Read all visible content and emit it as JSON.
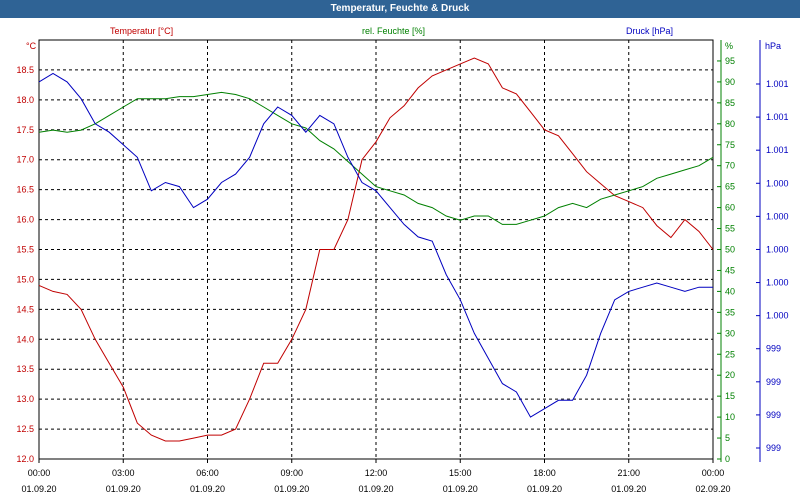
{
  "window": {
    "title": "Temperatur, Feuchte & Druck"
  },
  "chart_data": {
    "type": "line",
    "title": "Temperatur, Feuchte & Druck",
    "colors": {
      "temperature": "#c00000",
      "humidity": "#008000",
      "pressure": "#0000c0",
      "axis_left": "#c00000",
      "axis_mid": "#008000",
      "axis_right": "#0000c0"
    },
    "grid": true,
    "x_ticks": [
      {
        "time": "00:00",
        "date": "01.09.20"
      },
      {
        "time": "03:00",
        "date": "01.09.20"
      },
      {
        "time": "06:00",
        "date": "01.09.20"
      },
      {
        "time": "09:00",
        "date": "01.09.20"
      },
      {
        "time": "12:00",
        "date": "01.09.20"
      },
      {
        "time": "15:00",
        "date": "01.09.20"
      },
      {
        "time": "18:00",
        "date": "01.09.20"
      },
      {
        "time": "21:00",
        "date": "01.09.20"
      },
      {
        "time": "00:00",
        "date": "02.09.20"
      }
    ],
    "x_hours": [
      0,
      24
    ],
    "axes": {
      "temperature": {
        "label": "Temperatur [°C]",
        "unit": "°C",
        "ylim": [
          12.0,
          19.0
        ],
        "ticks": [
          "12.0",
          "12.5",
          "13.0",
          "13.5",
          "14.0",
          "14.5",
          "15.0",
          "15.5",
          "16.0",
          "16.5",
          "17.0",
          "17.5",
          "18.0",
          "18.5"
        ]
      },
      "humidity": {
        "label": "rel. Feuchte [%]",
        "unit": "%",
        "ylim": [
          0,
          100
        ],
        "ticks": [
          "0",
          "5",
          "10",
          "15",
          "20",
          "25",
          "30",
          "35",
          "40",
          "45",
          "50",
          "55",
          "60",
          "65",
          "70",
          "75",
          "80",
          "85",
          "90",
          "95"
        ]
      },
      "pressure": {
        "label": "Druck [hPa]",
        "unit": "hPa",
        "ticks": [
          "999",
          "999",
          "999",
          "999",
          "1.000",
          "1.000",
          "1.000",
          "1.000",
          "1.000",
          "1.001",
          "1.001",
          "1.001"
        ]
      }
    },
    "series": [
      {
        "name": "Temperatur [°C]",
        "axis": "temperature",
        "x": [
          0,
          0.5,
          1,
          1.5,
          2,
          2.5,
          3,
          3.5,
          4,
          4.5,
          5,
          5.5,
          6,
          6.5,
          7,
          7.5,
          8,
          8.5,
          9,
          9.5,
          10,
          10.5,
          11,
          11.5,
          12,
          12.5,
          13,
          13.5,
          14,
          14.5,
          15,
          15.5,
          16,
          16.5,
          17,
          17.5,
          18,
          18.5,
          19,
          19.5,
          20,
          20.5,
          21,
          21.5,
          22,
          22.5,
          23,
          23.5,
          24
        ],
        "values": [
          14.9,
          14.8,
          14.75,
          14.5,
          14.0,
          13.6,
          13.2,
          12.6,
          12.4,
          12.3,
          12.3,
          12.35,
          12.4,
          12.4,
          12.5,
          13.0,
          13.6,
          13.6,
          14.0,
          14.5,
          15.5,
          15.5,
          16.0,
          17.0,
          17.3,
          17.7,
          17.9,
          18.2,
          18.4,
          18.5,
          18.6,
          18.7,
          18.6,
          18.2,
          18.1,
          17.8,
          17.5,
          17.4,
          17.1,
          16.8,
          16.6,
          16.4,
          16.3,
          16.2,
          15.9,
          15.7,
          16.0,
          15.8,
          15.5
        ]
      },
      {
        "name": "rel. Feuchte [%]",
        "axis": "humidity",
        "x": [
          0,
          0.5,
          1,
          1.5,
          2,
          2.5,
          3,
          3.5,
          4,
          4.5,
          5,
          5.5,
          6,
          6.5,
          7,
          7.5,
          8,
          8.5,
          9,
          9.5,
          10,
          10.5,
          11,
          11.5,
          12,
          12.5,
          13,
          13.5,
          14,
          14.5,
          15,
          15.5,
          16,
          16.5,
          17,
          17.5,
          18,
          18.5,
          19,
          19.5,
          20,
          20.5,
          21,
          21.5,
          22,
          22.5,
          23,
          23.5,
          24
        ],
        "values": [
          78,
          78.5,
          78,
          78.5,
          80,
          82,
          84,
          86,
          86,
          86,
          86.5,
          86.5,
          87,
          87.5,
          87,
          86,
          84,
          82,
          80,
          79,
          76,
          74,
          71,
          68,
          65,
          64,
          63,
          61,
          60,
          58,
          57,
          58,
          58,
          56,
          56,
          57,
          58,
          60,
          61,
          60,
          62,
          63,
          64,
          65,
          67,
          68,
          69,
          70,
          72
        ]
      },
      {
        "name": "Druck [hPa]",
        "axis": "pressure",
        "x": [
          0,
          0.5,
          1,
          1.5,
          2,
          2.5,
          3,
          3.5,
          4,
          4.5,
          5,
          5.5,
          6,
          6.5,
          7,
          7.5,
          8,
          8.5,
          9,
          9.5,
          10,
          10.5,
          11,
          11.5,
          12,
          12.5,
          13,
          13.5,
          14,
          14.5,
          15,
          15.5,
          16,
          16.5,
          17,
          17.5,
          18,
          18.5,
          19,
          19.5,
          20,
          20.5,
          21,
          21.5,
          22,
          22.5,
          23,
          23.5,
          24
        ],
        "values": [
          90,
          92,
          90,
          86,
          80,
          78,
          75,
          72,
          64,
          66,
          65,
          60,
          62,
          66,
          68,
          72,
          80,
          84,
          82,
          78,
          82,
          80,
          72,
          66,
          64,
          60,
          56,
          53,
          52,
          44,
          38,
          30,
          24,
          18,
          16,
          10,
          12,
          14,
          14,
          20,
          30,
          38,
          40,
          41,
          42,
          41,
          40,
          41,
          41
        ]
      }
    ]
  }
}
